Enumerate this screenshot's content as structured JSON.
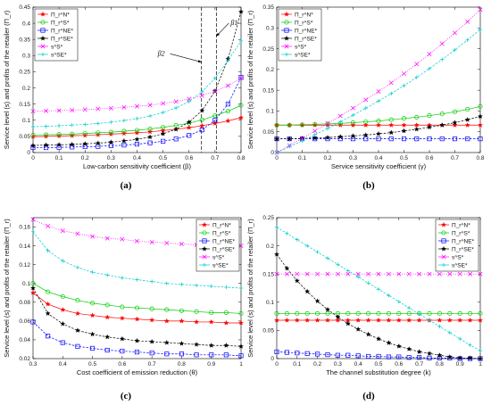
{
  "figure": {
    "panel_labels": [
      "(a)",
      "(b)",
      "(c)",
      "(d)"
    ],
    "ylabel": "Service level (s) and profits of the retailer (Π_r)"
  },
  "legend_labels": [
    "Π_r^N*",
    "Π_r^S*",
    "Π_r^NE*",
    "Π_r^SE*",
    "s^S*",
    "s^SE*"
  ],
  "chart_data": [
    {
      "type": "line",
      "xlabel": "Low-carbon sensitivity coefficient (β)",
      "ylabel": "Service level (s) and profits of the retailer (Π_r)",
      "xlim": [
        0,
        0.8
      ],
      "ylim": [
        0,
        0.45
      ],
      "xticks": [
        0,
        0.1,
        0.2,
        0.3,
        0.4,
        0.5,
        0.6,
        0.7,
        0.8
      ],
      "yticks": [
        0,
        0.05,
        0.1,
        0.15,
        0.2,
        0.25,
        0.3,
        0.35,
        0.4,
        0.45
      ],
      "legend_position": "top-left",
      "annotations": [
        {
          "text": "β1",
          "x": 0.76,
          "y": 0.395,
          "arrow_to": [
            0.705,
            0.36
          ]
        },
        {
          "text": "β2",
          "x": 0.5,
          "y": 0.3,
          "arrow_to": [
            0.648,
            0.28
          ]
        }
      ],
      "vlines": [
        0.648,
        0.705
      ],
      "x": [
        0,
        0.05,
        0.1,
        0.15,
        0.2,
        0.25,
        0.3,
        0.35,
        0.4,
        0.45,
        0.5,
        0.55,
        0.6,
        0.65,
        0.7,
        0.75,
        0.8
      ],
      "series": [
        {
          "name": "Π_r^N*",
          "values": [
            0.049,
            0.05,
            0.051,
            0.052,
            0.053,
            0.055,
            0.057,
            0.059,
            0.061,
            0.064,
            0.068,
            0.072,
            0.077,
            0.083,
            0.09,
            0.098,
            0.108
          ]
        },
        {
          "name": "Π_r^S*",
          "values": [
            0.054,
            0.055,
            0.056,
            0.057,
            0.059,
            0.061,
            0.063,
            0.066,
            0.069,
            0.073,
            0.078,
            0.084,
            0.091,
            0.101,
            0.114,
            0.128,
            0.146
          ]
        },
        {
          "name": "Π_r^NE*",
          "values": [
            0.015,
            0.015,
            0.016,
            0.017,
            0.018,
            0.019,
            0.021,
            0.023,
            0.026,
            0.03,
            0.035,
            0.042,
            0.053,
            0.07,
            0.1,
            0.15,
            0.233
          ]
        },
        {
          "name": "Π_r^SE*",
          "values": [
            0.022,
            0.023,
            0.024,
            0.025,
            0.027,
            0.029,
            0.032,
            0.036,
            0.041,
            0.048,
            0.058,
            0.072,
            0.094,
            0.13,
            0.19,
            0.29,
            0.436
          ]
        },
        {
          "name": "s^S*",
          "values": [
            0.128,
            0.129,
            0.13,
            0.131,
            0.133,
            0.135,
            0.137,
            0.14,
            0.143,
            0.147,
            0.152,
            0.158,
            0.166,
            0.176,
            0.19,
            0.207,
            0.23
          ]
        },
        {
          "name": "s^SE*",
          "values": [
            0.08,
            0.081,
            0.083,
            0.085,
            0.087,
            0.09,
            0.094,
            0.099,
            0.105,
            0.113,
            0.124,
            0.138,
            0.158,
            0.188,
            0.23,
            0.285,
            0.345
          ]
        }
      ]
    },
    {
      "type": "line",
      "xlabel": "Service sensitivity coefficient (γ)",
      "ylabel": "Service level (s) and profits of the retailer (Π_r)",
      "xlim": [
        0,
        0.8
      ],
      "ylim": [
        0,
        0.35
      ],
      "xticks": [
        0,
        0.1,
        0.2,
        0.3,
        0.4,
        0.5,
        0.6,
        0.7,
        0.8
      ],
      "yticks": [
        0,
        0.05,
        0.1,
        0.15,
        0.2,
        0.25,
        0.3,
        0.35
      ],
      "legend_position": "top-left",
      "x": [
        0,
        0.05,
        0.1,
        0.15,
        0.2,
        0.25,
        0.3,
        0.35,
        0.4,
        0.45,
        0.5,
        0.55,
        0.6,
        0.65,
        0.7,
        0.75,
        0.8
      ],
      "series": [
        {
          "name": "Π_r^N*",
          "values": [
            0.066,
            0.066,
            0.066,
            0.066,
            0.066,
            0.066,
            0.066,
            0.066,
            0.066,
            0.066,
            0.066,
            0.066,
            0.066,
            0.066,
            0.066,
            0.066,
            0.066
          ]
        },
        {
          "name": "Π_r^S*",
          "values": [
            0.066,
            0.066,
            0.067,
            0.068,
            0.069,
            0.07,
            0.072,
            0.074,
            0.076,
            0.079,
            0.082,
            0.085,
            0.089,
            0.093,
            0.098,
            0.104,
            0.111
          ]
        },
        {
          "name": "Π_r^NE*",
          "values": [
            0.033,
            0.033,
            0.033,
            0.033,
            0.033,
            0.033,
            0.033,
            0.033,
            0.033,
            0.033,
            0.033,
            0.033,
            0.033,
            0.033,
            0.033,
            0.033,
            0.033
          ]
        },
        {
          "name": "Π_r^SE*",
          "values": [
            0.033,
            0.033,
            0.034,
            0.035,
            0.036,
            0.038,
            0.04,
            0.042,
            0.045,
            0.048,
            0.052,
            0.056,
            0.061,
            0.066,
            0.072,
            0.079,
            0.087
          ]
        },
        {
          "name": "s^S*",
          "values": [
            0,
            0.017,
            0.034,
            0.052,
            0.07,
            0.088,
            0.107,
            0.127,
            0.147,
            0.168,
            0.19,
            0.213,
            0.237,
            0.262,
            0.288,
            0.315,
            0.344
          ]
        },
        {
          "name": "s^SE*",
          "values": [
            0,
            0.014,
            0.028,
            0.043,
            0.058,
            0.074,
            0.09,
            0.107,
            0.124,
            0.142,
            0.161,
            0.181,
            0.202,
            0.224,
            0.247,
            0.271,
            0.296
          ]
        }
      ]
    },
    {
      "type": "line",
      "xlabel": "Cost coefficient of emission reduction (θ)",
      "ylabel": "Service level (s) and profits of the retailer (Π_r)",
      "xlim": [
        0.3,
        1
      ],
      "ylim": [
        0.02,
        0.17
      ],
      "xticks": [
        0.3,
        0.4,
        0.5,
        0.6,
        0.7,
        0.8,
        0.9,
        1
      ],
      "yticks": [
        0.02,
        0.04,
        0.06,
        0.08,
        0.1,
        0.12,
        0.14,
        0.16
      ],
      "legend_position": "top-right",
      "x": [
        0.3,
        0.35,
        0.4,
        0.45,
        0.5,
        0.55,
        0.6,
        0.65,
        0.7,
        0.75,
        0.8,
        0.85,
        0.9,
        0.95,
        1
      ],
      "series": [
        {
          "name": "Π_r^N*",
          "values": [
            0.09,
            0.078,
            0.072,
            0.068,
            0.066,
            0.064,
            0.063,
            0.062,
            0.061,
            0.06,
            0.06,
            0.059,
            0.059,
            0.058,
            0.058
          ]
        },
        {
          "name": "Π_r^S*",
          "values": [
            0.1,
            0.091,
            0.086,
            0.082,
            0.079,
            0.077,
            0.075,
            0.074,
            0.073,
            0.072,
            0.071,
            0.07,
            0.069,
            0.069,
            0.068
          ]
        },
        {
          "name": "Π_r^NE*",
          "values": [
            0.059,
            0.044,
            0.037,
            0.033,
            0.031,
            0.029,
            0.028,
            0.027,
            0.026,
            0.025,
            0.025,
            0.024,
            0.024,
            0.024,
            0.023
          ]
        },
        {
          "name": "Π_r^SE*",
          "values": [
            0.095,
            0.068,
            0.057,
            0.05,
            0.046,
            0.043,
            0.041,
            0.039,
            0.038,
            0.037,
            0.036,
            0.035,
            0.034,
            0.034,
            0.033
          ]
        },
        {
          "name": "s^S*",
          "values": [
            0.168,
            0.161,
            0.156,
            0.153,
            0.15,
            0.148,
            0.147,
            0.145,
            0.144,
            0.143,
            0.142,
            0.141,
            0.141,
            0.14,
            0.14
          ]
        },
        {
          "name": "s^SE*",
          "values": [
            0.155,
            0.135,
            0.124,
            0.117,
            0.112,
            0.109,
            0.106,
            0.104,
            0.102,
            0.1,
            0.099,
            0.098,
            0.097,
            0.096,
            0.095
          ]
        }
      ]
    },
    {
      "type": "line",
      "xlabel": "The channel substitution degree (k)",
      "ylabel": "Service level (s) and profits of the retailer (Π_r)",
      "xlim": [
        0,
        1
      ],
      "ylim": [
        0,
        0.25
      ],
      "xticks": [
        0,
        0.1,
        0.2,
        0.3,
        0.4,
        0.5,
        0.6,
        0.7,
        0.8,
        0.9,
        1
      ],
      "yticks": [
        0,
        0.05,
        0.1,
        0.15,
        0.2,
        0.25
      ],
      "legend_position": "top-right",
      "x": [
        0,
        0.05,
        0.1,
        0.15,
        0.2,
        0.25,
        0.3,
        0.35,
        0.4,
        0.45,
        0.5,
        0.55,
        0.6,
        0.65,
        0.7,
        0.75,
        0.8,
        0.85,
        0.9,
        0.95,
        1
      ],
      "series": [
        {
          "name": "Π_r^N*",
          "values": [
            0.068,
            0.068,
            0.068,
            0.068,
            0.068,
            0.068,
            0.068,
            0.068,
            0.068,
            0.068,
            0.068,
            0.068,
            0.068,
            0.068,
            0.068,
            0.068,
            0.068,
            0.068,
            0.068,
            0.068,
            0.068
          ]
        },
        {
          "name": "Π_r^S*",
          "values": [
            0.08,
            0.08,
            0.08,
            0.08,
            0.08,
            0.08,
            0.08,
            0.08,
            0.08,
            0.08,
            0.08,
            0.08,
            0.08,
            0.08,
            0.08,
            0.08,
            0.08,
            0.08,
            0.08,
            0.08,
            0.08
          ]
        },
        {
          "name": "Π_r^NE*",
          "values": [
            0.012,
            0.011,
            0.01,
            0.009,
            0.008,
            0.007,
            0.006,
            0.006,
            0.005,
            0.004,
            0.004,
            0.003,
            0.003,
            0.002,
            0.002,
            0.001,
            0.001,
            0.001,
            0,
            0,
            0
          ]
        },
        {
          "name": "Π_r^SE*",
          "values": [
            0.185,
            0.16,
            0.138,
            0.119,
            0.102,
            0.087,
            0.074,
            0.062,
            0.052,
            0.043,
            0.035,
            0.028,
            0.022,
            0.017,
            0.012,
            0.009,
            0.006,
            0.003,
            0.001,
            0.001,
            0
          ]
        },
        {
          "name": "s^S*",
          "values": [
            0.15,
            0.15,
            0.15,
            0.15,
            0.15,
            0.15,
            0.15,
            0.15,
            0.15,
            0.15,
            0.15,
            0.15,
            0.15,
            0.15,
            0.15,
            0.15,
            0.15,
            0.15,
            0.15,
            0.15,
            0.15
          ]
        },
        {
          "name": "s^SE*",
          "values": [
            0.233,
            0.222,
            0.211,
            0.2,
            0.189,
            0.178,
            0.167,
            0.156,
            0.145,
            0.134,
            0.123,
            0.112,
            0.101,
            0.09,
            0.079,
            0.068,
            0.057,
            0.046,
            0.035,
            0.024,
            0.014
          ]
        }
      ]
    }
  ],
  "series_styles": [
    {
      "color": "#ff0000",
      "marker": "star-filled"
    },
    {
      "color": "#00cc00",
      "marker": "circle"
    },
    {
      "color": "#0000ff",
      "marker": "square"
    },
    {
      "color": "#000000",
      "marker": "star"
    },
    {
      "color": "#ff00ff",
      "marker": "x"
    },
    {
      "color": "#00cccc",
      "marker": "plus"
    }
  ]
}
